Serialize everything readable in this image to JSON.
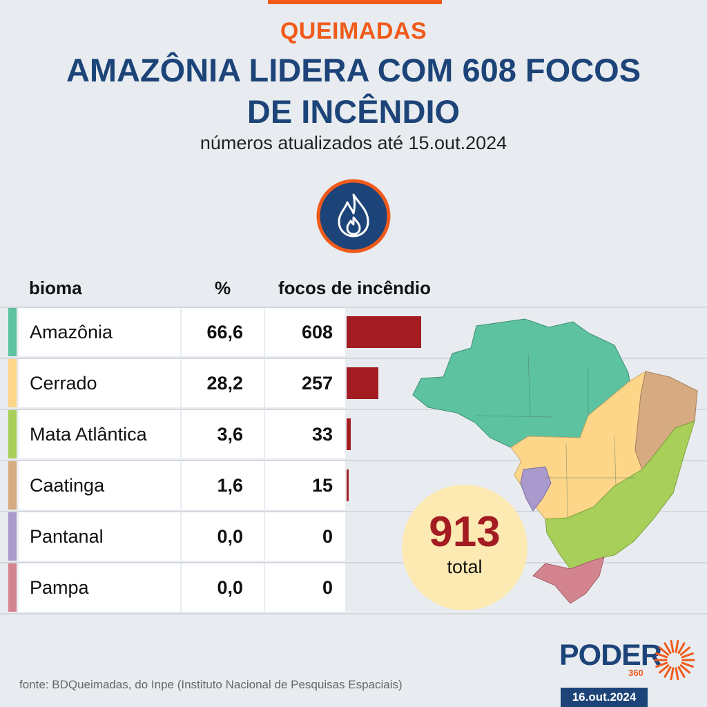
{
  "header": {
    "kicker": "QUEIMADAS",
    "title_line1": "AMAZÔNIA LIDERA COM 608 FOCOS",
    "title_line2": "DE INCÊNDIO",
    "subtitle": "números atualizados até 15.out.2024"
  },
  "icon": "flame-icon",
  "chart_data": {
    "type": "bar",
    "columns": [
      "bioma",
      "%",
      "focos de incêndio"
    ],
    "categories": [
      "Amazônia",
      "Cerrado",
      "Mata Atlântica",
      "Caatinga",
      "Pantanal",
      "Pampa"
    ],
    "percent_labels": [
      "66,6",
      "28,2",
      "3,6",
      "1,6",
      "0,0",
      "0,0"
    ],
    "values": [
      608,
      257,
      33,
      15,
      0,
      0
    ],
    "colors": [
      "#5cc29f",
      "#fdd68a",
      "#a7cf5a",
      "#d6ab82",
      "#a999cc",
      "#d3848e"
    ],
    "bar_color": "#a31c22",
    "total_value": "913",
    "total_label": "total"
  },
  "footer": {
    "source": "fonte: BDQueimadas, do Inpe (Instituto Nacional de Pesquisas Espaciais)",
    "logo_main": "PODER",
    "logo_sub": "360",
    "date": "16.out.2024"
  },
  "colors": {
    "accent": "#f05a1a",
    "brand_blue": "#1d4479",
    "bar": "#a31c22",
    "total_circle": "#fde9b2"
  }
}
